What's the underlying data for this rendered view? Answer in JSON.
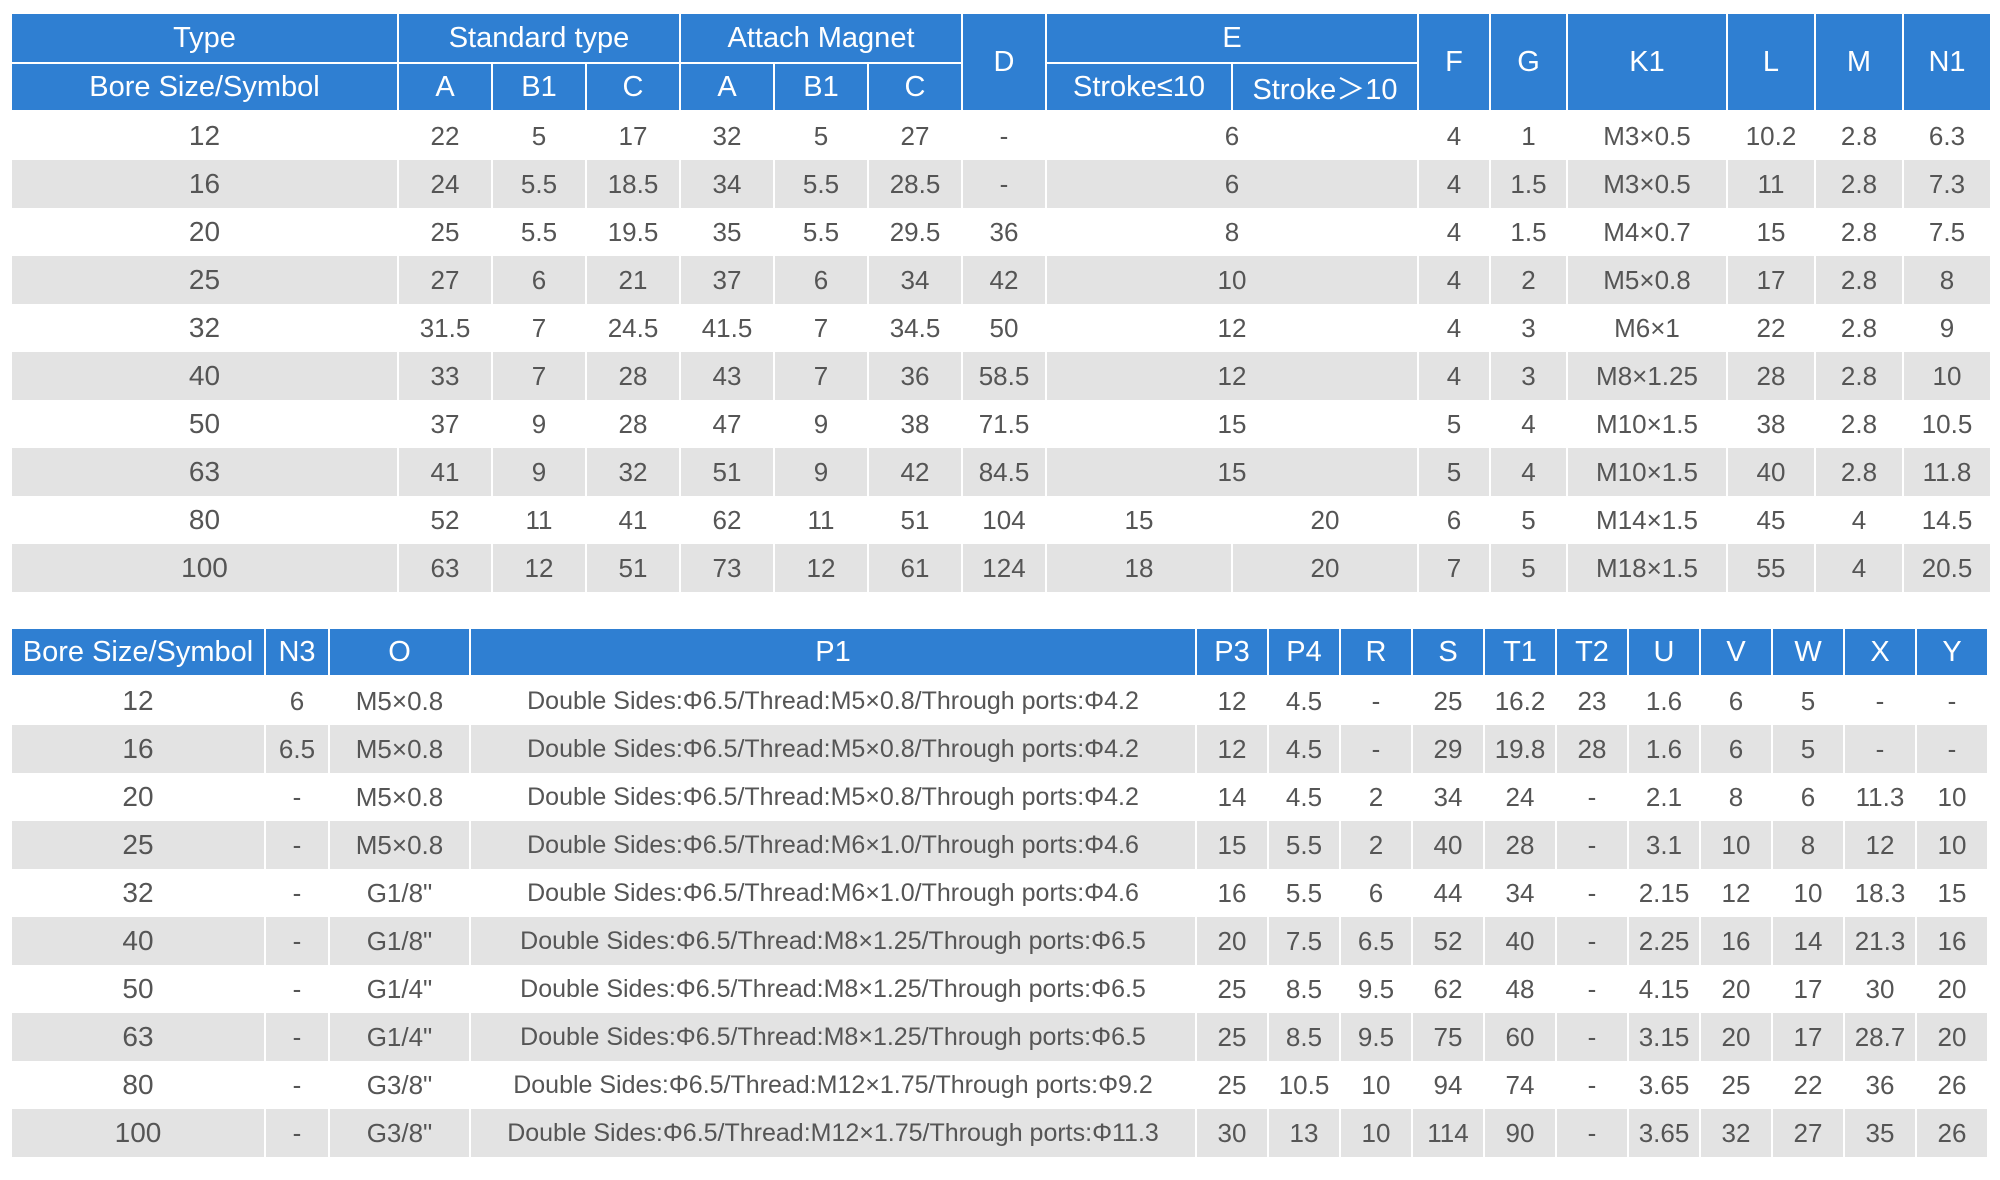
{
  "table1": {
    "header": {
      "type": "Type",
      "bore": "Bore Size/Symbol",
      "standard": "Standard type",
      "attach": "Attach Magnet",
      "a": "A",
      "b1": "B1",
      "c": "C",
      "d": "D",
      "e": "E",
      "stroke_le": "Stroke≤10",
      "stroke_gt": "Stroke＞10",
      "f": "F",
      "g": "G",
      "k1": "K1",
      "l": "L",
      "m": "M",
      "n1": "N1"
    },
    "rows": [
      {
        "bore": "12",
        "sa": "22",
        "sb1": "5",
        "sc": "17",
        "ma": "32",
        "mb1": "5",
        "mc": "27",
        "d": "-",
        "e": "6",
        "f": "4",
        "g": "1",
        "k1": "M3×0.5",
        "l": "10.2",
        "m": "2.8",
        "n1": "6.3"
      },
      {
        "bore": "16",
        "sa": "24",
        "sb1": "5.5",
        "sc": "18.5",
        "ma": "34",
        "mb1": "5.5",
        "mc": "28.5",
        "d": "-",
        "e": "6",
        "f": "4",
        "g": "1.5",
        "k1": "M3×0.5",
        "l": "11",
        "m": "2.8",
        "n1": "7.3"
      },
      {
        "bore": "20",
        "sa": "25",
        "sb1": "5.5",
        "sc": "19.5",
        "ma": "35",
        "mb1": "5.5",
        "mc": "29.5",
        "d": "36",
        "e": "8",
        "f": "4",
        "g": "1.5",
        "k1": "M4×0.7",
        "l": "15",
        "m": "2.8",
        "n1": "7.5"
      },
      {
        "bore": "25",
        "sa": "27",
        "sb1": "6",
        "sc": "21",
        "ma": "37",
        "mb1": "6",
        "mc": "34",
        "d": "42",
        "e": "10",
        "f": "4",
        "g": "2",
        "k1": "M5×0.8",
        "l": "17",
        "m": "2.8",
        "n1": "8"
      },
      {
        "bore": "32",
        "sa": "31.5",
        "sb1": "7",
        "sc": "24.5",
        "ma": "41.5",
        "mb1": "7",
        "mc": "34.5",
        "d": "50",
        "e": "12",
        "f": "4",
        "g": "3",
        "k1": "M6×1",
        "l": "22",
        "m": "2.8",
        "n1": "9"
      },
      {
        "bore": "40",
        "sa": "33",
        "sb1": "7",
        "sc": "28",
        "ma": "43",
        "mb1": "7",
        "mc": "36",
        "d": "58.5",
        "e": "12",
        "f": "4",
        "g": "3",
        "k1": "M8×1.25",
        "l": "28",
        "m": "2.8",
        "n1": "10"
      },
      {
        "bore": "50",
        "sa": "37",
        "sb1": "9",
        "sc": "28",
        "ma": "47",
        "mb1": "9",
        "mc": "38",
        "d": "71.5",
        "e": "15",
        "f": "5",
        "g": "4",
        "k1": "M10×1.5",
        "l": "38",
        "m": "2.8",
        "n1": "10.5"
      },
      {
        "bore": "63",
        "sa": "41",
        "sb1": "9",
        "sc": "32",
        "ma": "51",
        "mb1": "9",
        "mc": "42",
        "d": "84.5",
        "e": "15",
        "f": "5",
        "g": "4",
        "k1": "M10×1.5",
        "l": "40",
        "m": "2.8",
        "n1": "11.8"
      },
      {
        "bore": "80",
        "sa": "52",
        "sb1": "11",
        "sc": "41",
        "ma": "62",
        "mb1": "11",
        "mc": "51",
        "d": "104",
        "e_le": "15",
        "e_gt": "20",
        "f": "6",
        "g": "5",
        "k1": "M14×1.5",
        "l": "45",
        "m": "4",
        "n1": "14.5"
      },
      {
        "bore": "100",
        "sa": "63",
        "sb1": "12",
        "sc": "51",
        "ma": "73",
        "mb1": "12",
        "mc": "61",
        "d": "124",
        "e_le": "18",
        "e_gt": "20",
        "f": "7",
        "g": "5",
        "k1": "M18×1.5",
        "l": "55",
        "m": "4",
        "n1": "20.5"
      }
    ]
  },
  "table2": {
    "header": {
      "bore": "Bore Size/Symbol",
      "n3": "N3",
      "o": "O",
      "p1": "P1",
      "p3": "P3",
      "p4": "P4",
      "r": "R",
      "s": "S",
      "t1": "T1",
      "t2": "T2",
      "u": "U",
      "v": "V",
      "w": "W",
      "x": "X",
      "y": "Y"
    },
    "rows": [
      {
        "bore": "12",
        "n3": "6",
        "o": "M5×0.8",
        "p1": "Double Sides:Φ6.5/Thread:M5×0.8/Through ports:Φ4.2",
        "p3": "12",
        "p4": "4.5",
        "r": "-",
        "s": "25",
        "t1": "16.2",
        "t2": "23",
        "u": "1.6",
        "v": "6",
        "w": "5",
        "x": "-",
        "y": "-"
      },
      {
        "bore": "16",
        "n3": "6.5",
        "o": "M5×0.8",
        "p1": "Double Sides:Φ6.5/Thread:M5×0.8/Through ports:Φ4.2",
        "p3": "12",
        "p4": "4.5",
        "r": "-",
        "s": "29",
        "t1": "19.8",
        "t2": "28",
        "u": "1.6",
        "v": "6",
        "w": "5",
        "x": "-",
        "y": "-"
      },
      {
        "bore": "20",
        "n3": "-",
        "o": "M5×0.8",
        "p1": "Double Sides:Φ6.5/Thread:M5×0.8/Through ports:Φ4.2",
        "p3": "14",
        "p4": "4.5",
        "r": "2",
        "s": "34",
        "t1": "24",
        "t2": "-",
        "u": "2.1",
        "v": "8",
        "w": "6",
        "x": "11.3",
        "y": "10"
      },
      {
        "bore": "25",
        "n3": "-",
        "o": "M5×0.8",
        "p1": "Double Sides:Φ6.5/Thread:M6×1.0/Through ports:Φ4.6",
        "p3": "15",
        "p4": "5.5",
        "r": "2",
        "s": "40",
        "t1": "28",
        "t2": "-",
        "u": "3.1",
        "v": "10",
        "w": "8",
        "x": "12",
        "y": "10"
      },
      {
        "bore": "32",
        "n3": "-",
        "o": "G1/8\"",
        "p1": "Double Sides:Φ6.5/Thread:M6×1.0/Through ports:Φ4.6",
        "p3": "16",
        "p4": "5.5",
        "r": "6",
        "s": "44",
        "t1": "34",
        "t2": "-",
        "u": "2.15",
        "v": "12",
        "w": "10",
        "x": "18.3",
        "y": "15"
      },
      {
        "bore": "40",
        "n3": "-",
        "o": "G1/8\"",
        "p1": "Double Sides:Φ6.5/Thread:M8×1.25/Through ports:Φ6.5",
        "p3": "20",
        "p4": "7.5",
        "r": "6.5",
        "s": "52",
        "t1": "40",
        "t2": "-",
        "u": "2.25",
        "v": "16",
        "w": "14",
        "x": "21.3",
        "y": "16"
      },
      {
        "bore": "50",
        "n3": "-",
        "o": "G1/4\"",
        "p1": "Double Sides:Φ6.5/Thread:M8×1.25/Through ports:Φ6.5",
        "p3": "25",
        "p4": "8.5",
        "r": "9.5",
        "s": "62",
        "t1": "48",
        "t2": "-",
        "u": "4.15",
        "v": "20",
        "w": "17",
        "x": "30",
        "y": "20"
      },
      {
        "bore": "63",
        "n3": "-",
        "o": "G1/4\"",
        "p1": "Double Sides:Φ6.5/Thread:M8×1.25/Through ports:Φ6.5",
        "p3": "25",
        "p4": "8.5",
        "r": "9.5",
        "s": "75",
        "t1": "60",
        "t2": "-",
        "u": "3.15",
        "v": "20",
        "w": "17",
        "x": "28.7",
        "y": "20"
      },
      {
        "bore": "80",
        "n3": "-",
        "o": "G3/8\"",
        "p1": "Double Sides:Φ6.5/Thread:M12×1.75/Through ports:Φ9.2",
        "p3": "25",
        "p4": "10.5",
        "r": "10",
        "s": "94",
        "t1": "74",
        "t2": "-",
        "u": "3.65",
        "v": "25",
        "w": "22",
        "x": "36",
        "y": "26"
      },
      {
        "bore": "100",
        "n3": "-",
        "o": "G3/8\"",
        "p1": "Double Sides:Φ6.5/Thread:M12×1.75/Through ports:Φ11.3",
        "p3": "30",
        "p4": "13",
        "r": "10",
        "s": "114",
        "t1": "90",
        "t2": "-",
        "u": "3.65",
        "v": "32",
        "w": "27",
        "x": "35",
        "y": "26"
      }
    ]
  }
}
